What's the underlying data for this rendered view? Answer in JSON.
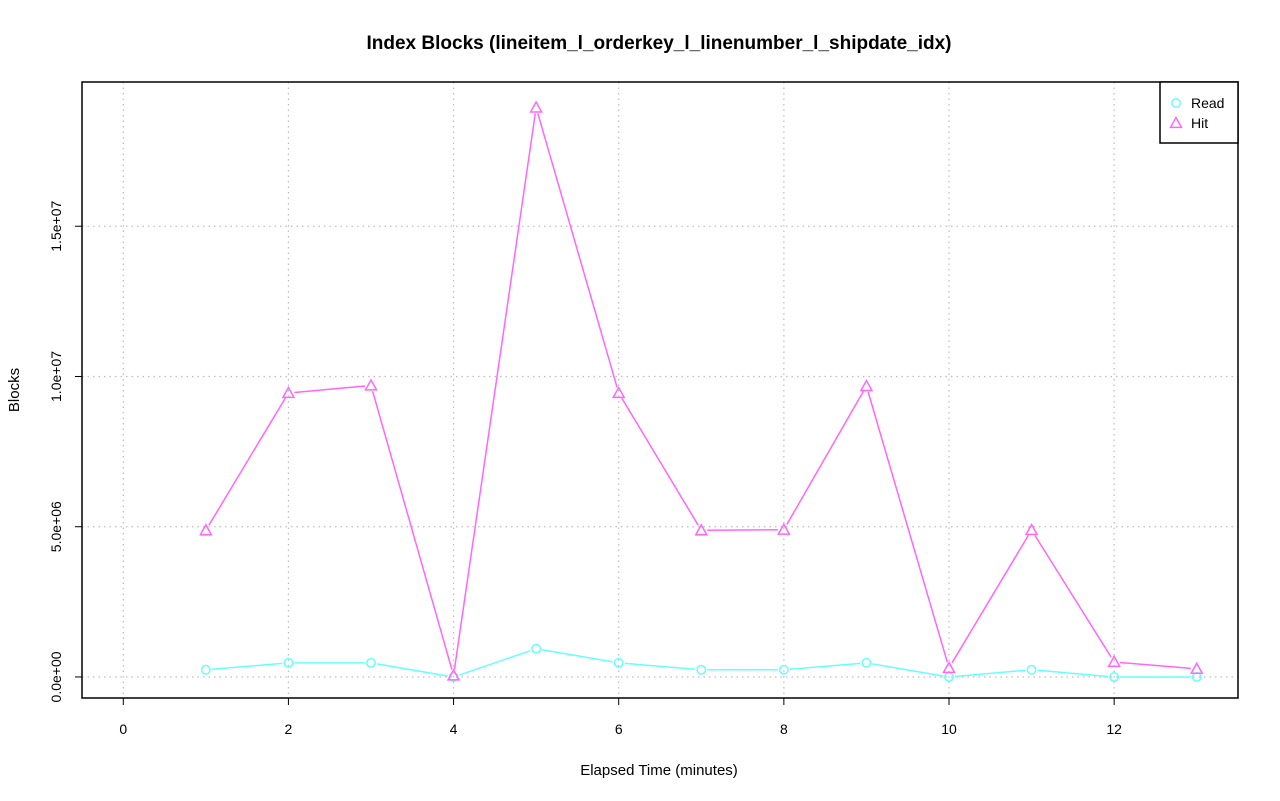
{
  "chart_data": {
    "type": "line",
    "title": "Index Blocks (lineitem_l_orderkey_l_linenumber_l_shipdate_idx)",
    "xlabel": "Elapsed Time (minutes)",
    "ylabel": "Blocks",
    "xlim": [
      -0.5,
      13.5
    ],
    "ylim": [
      -700000,
      19800000
    ],
    "x_ticks": [
      0,
      2,
      4,
      6,
      8,
      10,
      12
    ],
    "x_tick_labels": [
      "0",
      "2",
      "4",
      "6",
      "8",
      "10",
      "12"
    ],
    "y_ticks": [
      0,
      5000000,
      10000000,
      15000000
    ],
    "y_tick_labels": [
      "0.0e+00",
      "5.0e+06",
      "1.0e+07",
      "1.5e+07"
    ],
    "grid": true,
    "legend_position": "top-right",
    "x": [
      1,
      2,
      3,
      4,
      5,
      6,
      7,
      8,
      9,
      10,
      11,
      12,
      13
    ],
    "series": [
      {
        "name": "Read",
        "color": "#66ffff",
        "marker": "circle",
        "values": [
          240000,
          470000,
          470000,
          0,
          940000,
          470000,
          240000,
          240000,
          470000,
          0,
          240000,
          0,
          0
        ]
      },
      {
        "name": "Hit",
        "color": "#ff66ff",
        "marker": "triangle",
        "values": [
          4880000,
          9450000,
          9700000,
          50000,
          18950000,
          9450000,
          4880000,
          4900000,
          9680000,
          300000,
          4890000,
          500000,
          270000
        ]
      }
    ]
  }
}
